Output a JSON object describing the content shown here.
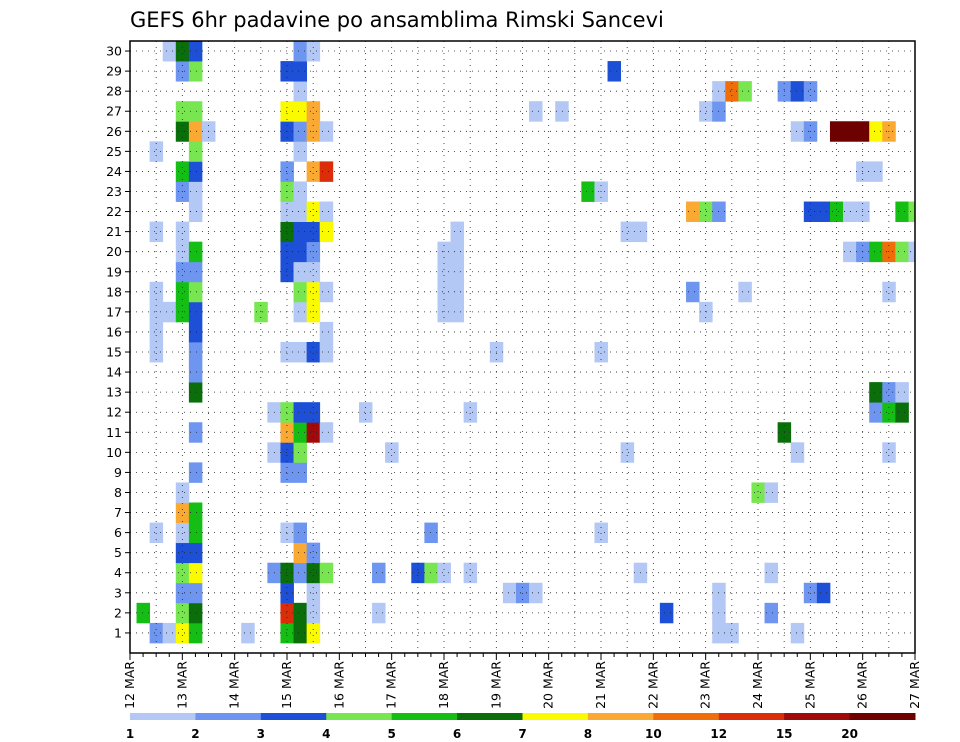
{
  "chart_data": {
    "type": "heatmap",
    "title": "GEFS 6hr padavine po ansamblima Rimski Sancevi",
    "x_tick_labels": [
      "12 MAR",
      "13 MAR",
      "14 MAR",
      "15 MAR",
      "16 MAR",
      "17 MAR",
      "18 MAR",
      "19 MAR",
      "20 MAR",
      "21 MAR",
      "22 MAR",
      "23 MAR",
      "24 MAR",
      "25 MAR",
      "26 MAR",
      "27 MAR"
    ],
    "y_tick_labels": [
      "1",
      "2",
      "3",
      "4",
      "5",
      "6",
      "7",
      "8",
      "9",
      "10",
      "11",
      "12",
      "13",
      "14",
      "15",
      "16",
      "17",
      "18",
      "19",
      "20",
      "21",
      "22",
      "23",
      "24",
      "25",
      "26",
      "27",
      "28",
      "29",
      "30"
    ],
    "xlim_days": [
      12,
      27
    ],
    "ylim_members": [
      0,
      30
    ],
    "step_hours": 6,
    "grid": "dotted",
    "colorbar": {
      "position": "bottom",
      "labels": [
        "1",
        "2",
        "3",
        "4",
        "5",
        "6",
        "7",
        "8",
        "10",
        "12",
        "15",
        "20"
      ],
      "colors": [
        "#b4c8f5",
        "#6e96f0",
        "#1e50d7",
        "#78e650",
        "#14be14",
        "#0a6e0a",
        "#fafa00",
        "#faaa32",
        "#f06e0a",
        "#dc2d0a",
        "#a00a0a",
        "#6e0000"
      ]
    },
    "cell_value_legend": "cells: [day (March, fractional), ensemble member, color class 1-12]",
    "cells": [
      [
        12.5,
        1,
        2
      ],
      [
        12.75,
        1,
        1
      ],
      [
        13.0,
        1,
        7
      ],
      [
        13.25,
        1,
        5
      ],
      [
        14.25,
        1,
        1
      ],
      [
        15.0,
        1,
        5
      ],
      [
        15.25,
        1,
        6
      ],
      [
        15.5,
        1,
        7
      ],
      [
        23.25,
        1,
        1
      ],
      [
        23.5,
        1,
        1
      ],
      [
        24.75,
        1,
        1
      ],
      [
        12.25,
        2,
        5
      ],
      [
        13.0,
        2,
        4
      ],
      [
        13.25,
        2,
        6
      ],
      [
        15.0,
        2,
        10
      ],
      [
        15.25,
        2,
        6
      ],
      [
        15.5,
        2,
        1
      ],
      [
        16.75,
        2,
        1
      ],
      [
        22.25,
        2,
        3
      ],
      [
        23.25,
        2,
        1
      ],
      [
        24.25,
        2,
        2
      ],
      [
        13.0,
        3,
        2
      ],
      [
        13.25,
        3,
        2
      ],
      [
        15.0,
        3,
        3
      ],
      [
        15.5,
        3,
        1
      ],
      [
        19.25,
        3,
        1
      ],
      [
        19.5,
        3,
        2
      ],
      [
        19.75,
        3,
        1
      ],
      [
        23.25,
        3,
        1
      ],
      [
        25.0,
        3,
        2
      ],
      [
        25.25,
        3,
        3
      ],
      [
        13.0,
        4,
        4
      ],
      [
        13.25,
        4,
        7
      ],
      [
        14.75,
        4,
        2
      ],
      [
        15.0,
        4,
        6
      ],
      [
        15.25,
        4,
        2
      ],
      [
        15.5,
        4,
        6
      ],
      [
        15.75,
        4,
        4
      ],
      [
        16.75,
        4,
        2
      ],
      [
        17.5,
        4,
        3
      ],
      [
        17.75,
        4,
        4
      ],
      [
        18.0,
        4,
        1
      ],
      [
        18.5,
        4,
        1
      ],
      [
        21.75,
        4,
        1
      ],
      [
        24.25,
        4,
        1
      ],
      [
        13.0,
        5,
        3
      ],
      [
        13.25,
        5,
        3
      ],
      [
        15.25,
        5,
        8
      ],
      [
        15.5,
        5,
        2
      ],
      [
        12.5,
        6,
        1
      ],
      [
        13.0,
        6,
        1
      ],
      [
        13.25,
        6,
        5
      ],
      [
        15.0,
        6,
        1
      ],
      [
        15.25,
        6,
        2
      ],
      [
        17.75,
        6,
        2
      ],
      [
        21.0,
        6,
        1
      ],
      [
        13.0,
        7,
        8
      ],
      [
        13.25,
        7,
        5
      ],
      [
        13.0,
        8,
        1
      ],
      [
        24.0,
        8,
        4
      ],
      [
        24.25,
        8,
        1
      ],
      [
        13.25,
        9,
        2
      ],
      [
        15.0,
        9,
        2
      ],
      [
        15.25,
        9,
        2
      ],
      [
        14.75,
        10,
        1
      ],
      [
        15.0,
        10,
        3
      ],
      [
        15.25,
        10,
        4
      ],
      [
        17.0,
        10,
        1
      ],
      [
        21.5,
        10,
        1
      ],
      [
        24.75,
        10,
        1
      ],
      [
        26.5,
        10,
        1
      ],
      [
        13.25,
        11,
        2
      ],
      [
        15.0,
        11,
        8
      ],
      [
        15.25,
        11,
        5
      ],
      [
        15.5,
        11,
        11
      ],
      [
        15.75,
        11,
        1
      ],
      [
        24.5,
        11,
        6
      ],
      [
        14.75,
        12,
        1
      ],
      [
        15.0,
        12,
        4
      ],
      [
        15.25,
        12,
        3
      ],
      [
        15.5,
        12,
        3
      ],
      [
        16.5,
        12,
        1
      ],
      [
        18.5,
        12,
        1
      ],
      [
        26.25,
        12,
        2
      ],
      [
        26.5,
        12,
        5
      ],
      [
        26.75,
        12,
        6
      ],
      [
        13.25,
        13,
        6
      ],
      [
        26.25,
        13,
        6
      ],
      [
        26.5,
        13,
        2
      ],
      [
        26.75,
        13,
        1
      ],
      [
        13.25,
        14,
        2
      ],
      [
        12.5,
        15,
        1
      ],
      [
        13.25,
        15,
        2
      ],
      [
        15.0,
        15,
        1
      ],
      [
        15.25,
        15,
        1
      ],
      [
        15.5,
        15,
        3
      ],
      [
        15.75,
        15,
        1
      ],
      [
        19.0,
        15,
        1
      ],
      [
        21.0,
        15,
        1
      ],
      [
        12.5,
        16,
        1
      ],
      [
        13.25,
        16,
        3
      ],
      [
        15.75,
        16,
        1
      ],
      [
        12.5,
        17,
        1
      ],
      [
        12.75,
        17,
        1
      ],
      [
        13.0,
        17,
        5
      ],
      [
        13.25,
        17,
        3
      ],
      [
        14.5,
        17,
        4
      ],
      [
        15.25,
        17,
        1
      ],
      [
        15.5,
        17,
        7
      ],
      [
        18.0,
        17,
        1
      ],
      [
        18.25,
        17,
        1
      ],
      [
        23.0,
        17,
        1
      ],
      [
        12.5,
        18,
        1
      ],
      [
        13.0,
        18,
        5
      ],
      [
        13.25,
        18,
        4
      ],
      [
        15.25,
        18,
        4
      ],
      [
        15.5,
        18,
        7
      ],
      [
        15.75,
        18,
        1
      ],
      [
        18.0,
        18,
        1
      ],
      [
        18.25,
        18,
        1
      ],
      [
        22.75,
        18,
        2
      ],
      [
        23.75,
        18,
        1
      ],
      [
        26.5,
        18,
        1
      ],
      [
        13.0,
        19,
        2
      ],
      [
        13.25,
        19,
        2
      ],
      [
        15.0,
        19,
        3
      ],
      [
        15.25,
        19,
        1
      ],
      [
        15.5,
        19,
        1
      ],
      [
        18.0,
        19,
        1
      ],
      [
        18.25,
        19,
        1
      ],
      [
        13.0,
        20,
        1
      ],
      [
        13.25,
        20,
        5
      ],
      [
        15.0,
        20,
        3
      ],
      [
        15.25,
        20,
        3
      ],
      [
        15.5,
        20,
        2
      ],
      [
        18.0,
        20,
        1
      ],
      [
        18.25,
        20,
        1
      ],
      [
        25.75,
        20,
        1
      ],
      [
        26.0,
        20,
        2
      ],
      [
        26.25,
        20,
        5
      ],
      [
        26.5,
        20,
        9
      ],
      [
        26.75,
        20,
        4
      ],
      [
        27.0,
        20,
        1
      ],
      [
        12.5,
        21,
        1
      ],
      [
        13.0,
        21,
        1
      ],
      [
        15.0,
        21,
        6
      ],
      [
        15.25,
        21,
        3
      ],
      [
        15.5,
        21,
        3
      ],
      [
        15.75,
        21,
        7
      ],
      [
        18.25,
        21,
        1
      ],
      [
        21.5,
        21,
        1
      ],
      [
        21.75,
        21,
        1
      ],
      [
        13.25,
        22,
        1
      ],
      [
        15.0,
        22,
        1
      ],
      [
        15.25,
        22,
        1
      ],
      [
        15.5,
        22,
        7
      ],
      [
        15.75,
        22,
        1
      ],
      [
        22.75,
        22,
        8
      ],
      [
        23.0,
        22,
        4
      ],
      [
        23.25,
        22,
        2
      ],
      [
        25.0,
        22,
        3
      ],
      [
        25.25,
        22,
        3
      ],
      [
        25.5,
        22,
        5
      ],
      [
        25.75,
        22,
        1
      ],
      [
        26.0,
        22,
        1
      ],
      [
        26.75,
        22,
        5
      ],
      [
        27.0,
        22,
        4
      ],
      [
        13.0,
        23,
        2
      ],
      [
        13.25,
        23,
        1
      ],
      [
        15.0,
        23,
        4
      ],
      [
        15.25,
        23,
        1
      ],
      [
        20.75,
        23,
        5
      ],
      [
        21.0,
        23,
        1
      ],
      [
        13.0,
        24,
        5
      ],
      [
        13.25,
        24,
        3
      ],
      [
        15.0,
        24,
        2
      ],
      [
        15.5,
        24,
        8
      ],
      [
        15.75,
        24,
        10
      ],
      [
        26.0,
        24,
        1
      ],
      [
        26.25,
        24,
        1
      ],
      [
        12.5,
        25,
        1
      ],
      [
        13.25,
        25,
        4
      ],
      [
        15.25,
        25,
        1
      ],
      [
        13.0,
        26,
        6
      ],
      [
        13.25,
        26,
        8
      ],
      [
        13.5,
        26,
        1
      ],
      [
        15.0,
        26,
        3
      ],
      [
        15.25,
        26,
        2
      ],
      [
        15.5,
        26,
        8
      ],
      [
        15.75,
        26,
        1
      ],
      [
        24.75,
        26,
        1
      ],
      [
        25.0,
        26,
        2
      ],
      [
        25.5,
        26,
        12
      ],
      [
        25.75,
        26,
        12
      ],
      [
        26.0,
        26,
        12
      ],
      [
        26.25,
        26,
        7
      ],
      [
        26.5,
        26,
        8
      ],
      [
        13.0,
        27,
        4
      ],
      [
        13.25,
        27,
        4
      ],
      [
        15.0,
        27,
        7
      ],
      [
        15.25,
        27,
        7
      ],
      [
        15.5,
        27,
        8
      ],
      [
        19.75,
        27,
        1
      ],
      [
        20.25,
        27,
        1
      ],
      [
        23.0,
        27,
        1
      ],
      [
        23.25,
        27,
        2
      ],
      [
        15.25,
        28,
        1
      ],
      [
        23.25,
        28,
        1
      ],
      [
        23.5,
        28,
        9
      ],
      [
        23.75,
        28,
        4
      ],
      [
        24.5,
        28,
        2
      ],
      [
        24.75,
        28,
        3
      ],
      [
        25.0,
        28,
        2
      ],
      [
        13.0,
        29,
        2
      ],
      [
        13.25,
        29,
        4
      ],
      [
        15.0,
        29,
        3
      ],
      [
        15.25,
        29,
        3
      ],
      [
        21.25,
        29,
        3
      ],
      [
        12.75,
        30,
        1
      ],
      [
        13.0,
        30,
        6
      ],
      [
        13.25,
        30,
        3
      ],
      [
        15.25,
        30,
        2
      ],
      [
        15.5,
        30,
        1
      ]
    ]
  }
}
